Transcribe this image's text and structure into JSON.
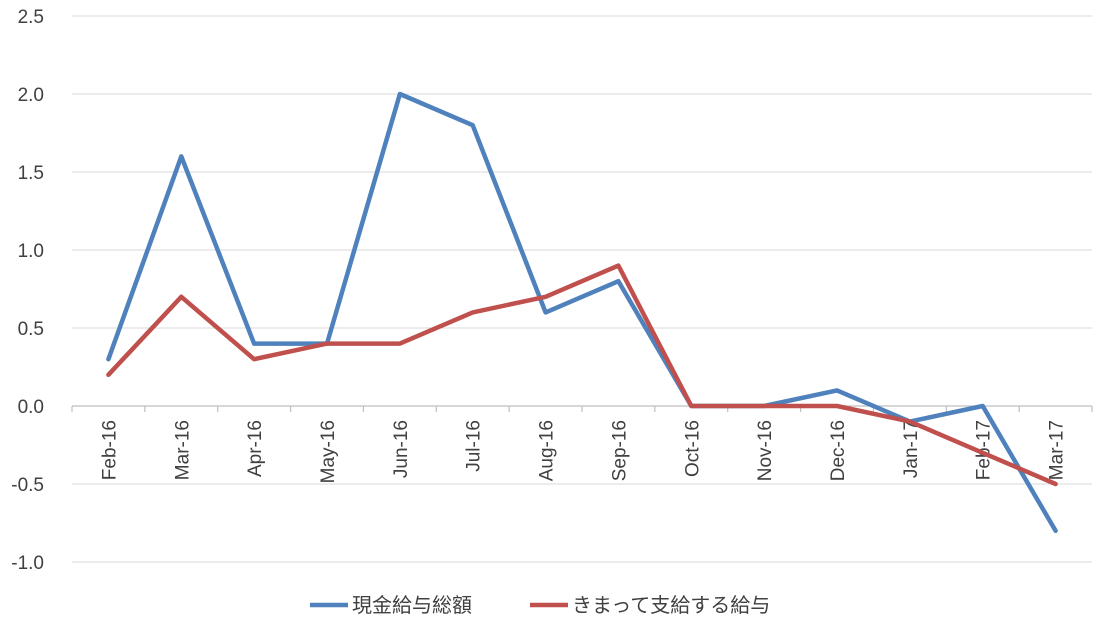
{
  "chart_data": {
    "type": "line",
    "categories": [
      "Feb-16",
      "Mar-16",
      "Apr-16",
      "May-16",
      "Jun-16",
      "Jul-16",
      "Aug-16",
      "Sep-16",
      "Oct-16",
      "Nov-16",
      "Dec-16",
      "Jan-17",
      "Feb-17",
      "Mar-17"
    ],
    "series": [
      {
        "name": "現金給与総額",
        "color": "#4f81bd",
        "values": [
          0.3,
          1.6,
          0.4,
          0.4,
          2.0,
          1.8,
          0.6,
          0.8,
          0.0,
          0.0,
          0.1,
          -0.1,
          0.0,
          -0.8
        ]
      },
      {
        "name": "きまって支給する給与",
        "color": "#c0504d",
        "values": [
          0.2,
          0.7,
          0.3,
          0.4,
          0.4,
          0.6,
          0.7,
          0.9,
          0.0,
          0.0,
          0.0,
          -0.1,
          -0.3,
          -0.5
        ]
      }
    ],
    "y_ticks": [
      "2.5",
      "2.0",
      "1.5",
      "1.0",
      "0.5",
      "0.0",
      "-0.5",
      "-1.0"
    ],
    "ylim": [
      -1.0,
      2.5
    ],
    "grid": true,
    "gridline_color": "#d9d9d9",
    "axis_color": "#bfbfbf",
    "legend_position": "bottom"
  }
}
